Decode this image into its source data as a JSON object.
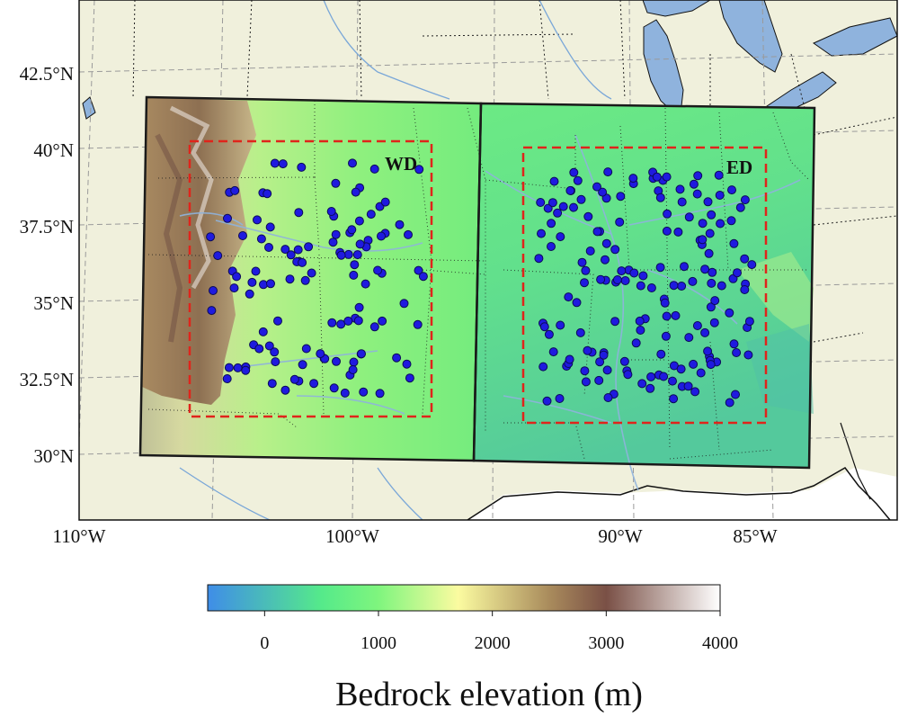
{
  "map": {
    "latitude_ticks": [
      "42.5°N",
      "40°N",
      "37.5°N",
      "35°N",
      "32.5°N",
      "30°N"
    ],
    "longitude_ticks": [
      "110°W",
      "100°W",
      "90°W",
      "85°W"
    ],
    "regions": [
      {
        "label": "WD",
        "lon_range": [
          -106.5,
          -96.5
        ],
        "lat_range": [
          31.5,
          40.3
        ]
      },
      {
        "label": "ED",
        "lon_range": [
          -92.5,
          -83.5
        ],
        "lat_range": [
          31.3,
          40.2
        ]
      }
    ],
    "colors": {
      "land": "#f0f0dc",
      "water": "#8fb3dd",
      "region_border": "#e0241b",
      "station_fill": "#1f1adf",
      "station_edge": "#0b0b55",
      "domain_border": "#1a1a1a"
    }
  },
  "colorbar": {
    "title": "Bedrock elevation (m)",
    "ticks": [
      "0",
      "1000",
      "2000",
      "3000",
      "4000"
    ],
    "range": [
      -500,
      4000
    ],
    "stops": [
      {
        "value": -500,
        "color": "#3f8de8"
      },
      {
        "value": 500,
        "color": "#55ea8a"
      },
      {
        "value": 1000,
        "color": "#7ff57e"
      },
      {
        "value": 1700,
        "color": "#fbfba0"
      },
      {
        "value": 2500,
        "color": "#a98b5c"
      },
      {
        "value": 3000,
        "color": "#7a5046"
      },
      {
        "value": 4000,
        "color": "#ffffff"
      }
    ]
  }
}
